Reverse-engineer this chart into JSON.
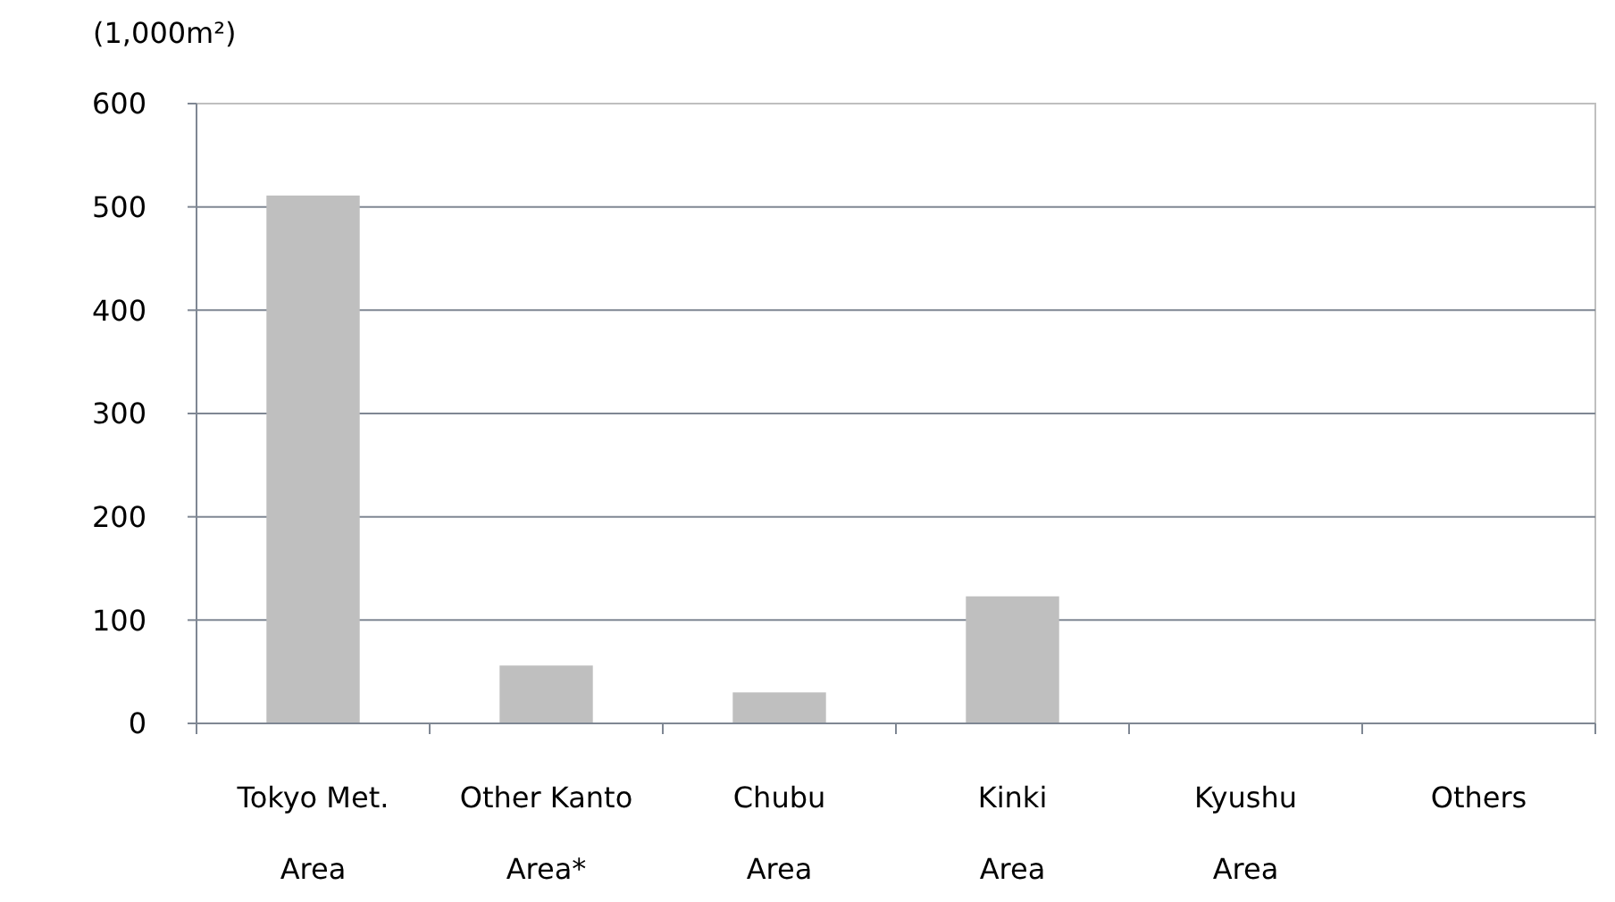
{
  "chart_data": {
    "type": "bar",
    "ylabel": "(1,000m²)",
    "categories": [
      "Tokyo Met.\nArea",
      "Other Kanto\nArea*",
      "Chubu\nArea",
      "Kinki\nArea",
      "Kyushu\nArea",
      "Others"
    ],
    "values": [
      511,
      56,
      30,
      123,
      0,
      0
    ],
    "color": "#bfbfbf",
    "ylim": [
      0,
      600
    ],
    "yticks": [
      0,
      100,
      200,
      300,
      400,
      500,
      600
    ],
    "grid": "y"
  }
}
